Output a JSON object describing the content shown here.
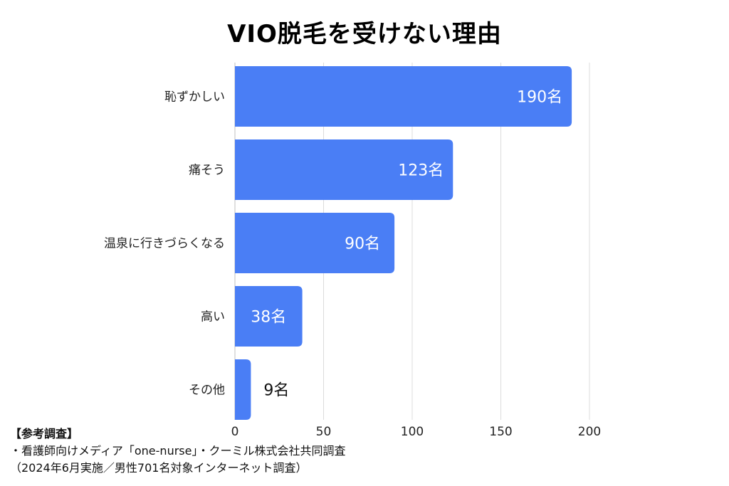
{
  "chart_data": {
    "type": "bar",
    "orientation": "horizontal",
    "title": "VIO脱毛を受けない理由",
    "categories": [
      "恥ずかしい",
      "痛そう",
      "温泉に行きづらくなる",
      "高い",
      "その他"
    ],
    "values": [
      190,
      123,
      90,
      38,
      9
    ],
    "value_labels": [
      "190名",
      "123名",
      "90名",
      "38名",
      "9名"
    ],
    "xlim": [
      0,
      200
    ],
    "x_ticks": [
      0,
      50,
      100,
      150,
      200
    ],
    "grid": true,
    "legend": "none",
    "bar_color": "#4a7ef5"
  },
  "footer": {
    "heading": "【参考調査】",
    "line1": "・看護師向けメディア「one-nurse」・クーミル株式会社共同調査",
    "line2": "（2024年6月実施／男性701名対象インターネット調査）"
  }
}
